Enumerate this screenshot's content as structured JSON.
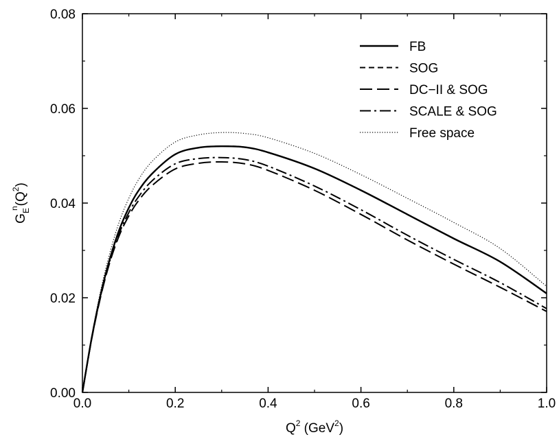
{
  "chart_data": {
    "type": "line",
    "xlabel": {
      "main": "Q",
      "sup": "2",
      "rest": " (GeV",
      "sup2": "2",
      "end": ")"
    },
    "ylabel": {
      "main": "G",
      "sub": "E",
      "sup": "n",
      "rest": "(Q",
      "sup2": "2",
      "end": ")"
    },
    "xlim": [
      0.0,
      1.0
    ],
    "ylim": [
      0.0,
      0.08
    ],
    "x_ticks": [
      {
        "value": 0.0,
        "label": "0.0"
      },
      {
        "value": 0.2,
        "label": "0.2"
      },
      {
        "value": 0.4,
        "label": "0.4"
      },
      {
        "value": 0.6,
        "label": "0.6"
      },
      {
        "value": 0.8,
        "label": "0.8"
      },
      {
        "value": 1.0,
        "label": "1.0"
      }
    ],
    "y_ticks": [
      {
        "value": 0.0,
        "label": "0.00"
      },
      {
        "value": 0.02,
        "label": "0.02"
      },
      {
        "value": 0.04,
        "label": "0.04"
      },
      {
        "value": 0.06,
        "label": "0.06"
      },
      {
        "value": 0.08,
        "label": "0.08"
      }
    ],
    "grid": false,
    "legend_position": "top-right",
    "x": [
      0.0,
      0.02,
      0.04,
      0.06,
      0.08,
      0.1,
      0.12,
      0.15,
      0.2,
      0.25,
      0.3,
      0.35,
      0.4,
      0.5,
      0.6,
      0.7,
      0.8,
      0.9,
      1.0
    ],
    "series": [
      {
        "name": "FB",
        "style": "solid",
        "values": [
          0.0,
          0.0115,
          0.021,
          0.0285,
          0.0345,
          0.039,
          0.0425,
          0.0462,
          0.0503,
          0.0517,
          0.052,
          0.0518,
          0.0507,
          0.0473,
          0.0427,
          0.0376,
          0.0325,
          0.0276,
          0.0209
        ]
      },
      {
        "name": "SOG",
        "style": "short-dash",
        "values": [
          0.0,
          0.0115,
          0.021,
          0.0285,
          0.0345,
          0.039,
          0.0425,
          0.0462,
          0.0503,
          0.0517,
          0.052,
          0.0518,
          0.0507,
          0.0473,
          0.0427,
          0.0376,
          0.0325,
          0.0276,
          0.0209
        ]
      },
      {
        "name": "DC−II & SOG",
        "style": "long-dash",
        "values": [
          0.0,
          0.0113,
          0.0205,
          0.0278,
          0.0333,
          0.0373,
          0.0404,
          0.0437,
          0.0472,
          0.0484,
          0.0487,
          0.0483,
          0.0469,
          0.0427,
          0.0376,
          0.0322,
          0.0271,
          0.0222,
          0.0171
        ]
      },
      {
        "name": "SCALE & SOG",
        "style": "dash-dot",
        "values": [
          0.0,
          0.0114,
          0.0207,
          0.0281,
          0.0338,
          0.038,
          0.0412,
          0.0447,
          0.0483,
          0.0494,
          0.0496,
          0.0492,
          0.0478,
          0.0436,
          0.0386,
          0.0332,
          0.0281,
          0.0232,
          0.0177
        ]
      },
      {
        "name": "Free space",
        "style": "dotted",
        "values": [
          0.0,
          0.0118,
          0.0218,
          0.0298,
          0.0362,
          0.041,
          0.0448,
          0.0488,
          0.0529,
          0.0544,
          0.0549,
          0.0547,
          0.0538,
          0.0505,
          0.046,
          0.041,
          0.0359,
          0.0304,
          0.0224
        ]
      }
    ]
  }
}
